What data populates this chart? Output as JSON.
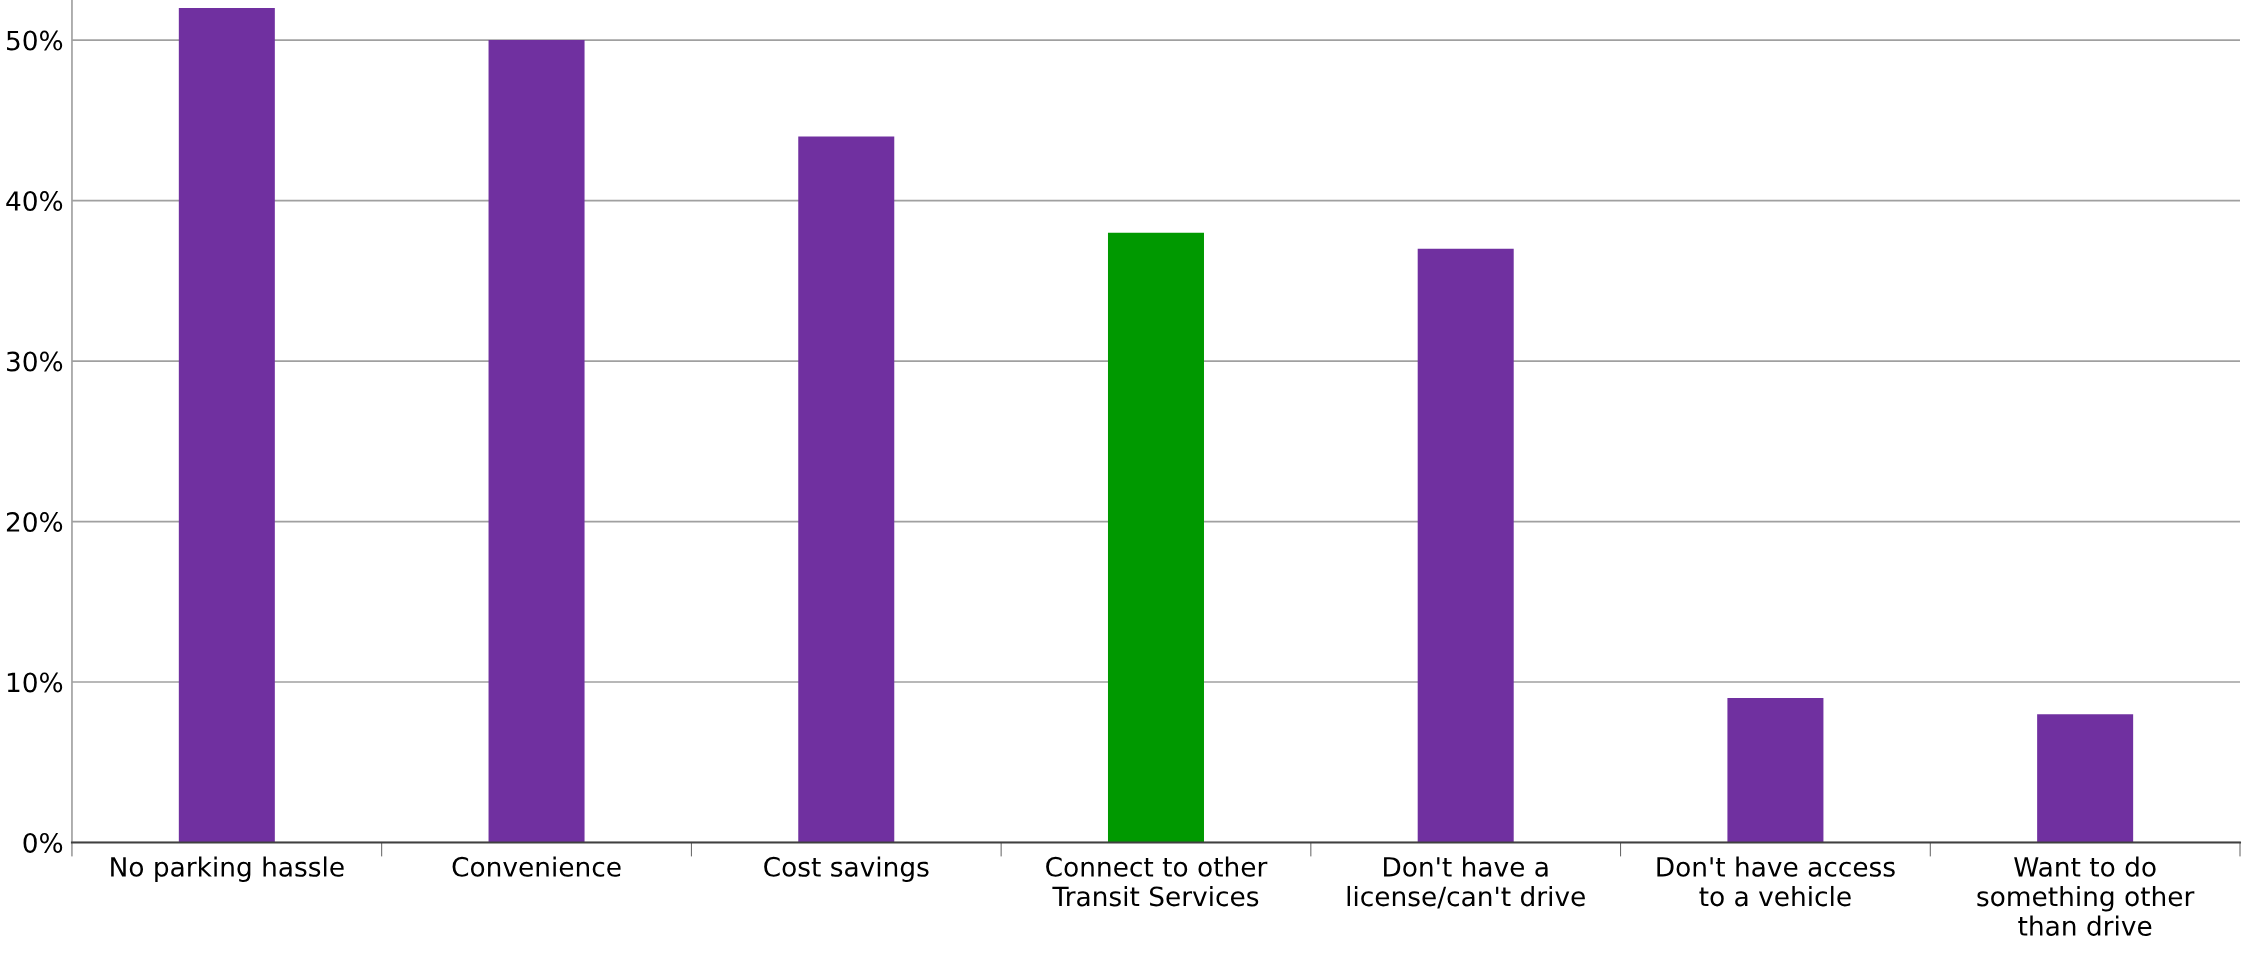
{
  "chart_data": {
    "type": "bar",
    "categories": [
      "No parking hassle",
      "Convenience",
      "Cost savings",
      "Connect to other\nTransit Services",
      "Don't have a\nlicense/can't drive",
      "Don't have access\nto a vehicle",
      "Want to do\nsomething other\nthan drive"
    ],
    "values": [
      52,
      50,
      44,
      38,
      37,
      9,
      8
    ],
    "colors": [
      "#7030a0",
      "#7030a0",
      "#7030a0",
      "#009900",
      "#7030a0",
      "#7030a0",
      "#7030a0"
    ],
    "ylim": [
      0,
      52.5
    ],
    "yticks": [
      {
        "value": 0,
        "label": "0%"
      },
      {
        "value": 10,
        "label": "10%"
      },
      {
        "value": 20,
        "label": "20%"
      },
      {
        "value": 30,
        "label": "30%"
      },
      {
        "value": 40,
        "label": "40%"
      },
      {
        "value": 50,
        "label": "50%"
      }
    ],
    "grid": "y",
    "legend": false
  }
}
